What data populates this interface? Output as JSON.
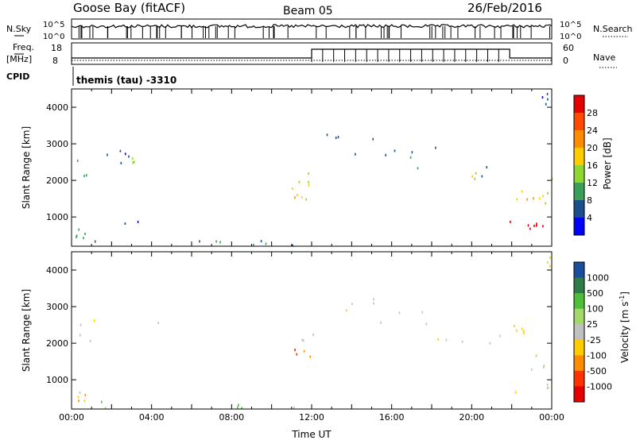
{
  "header": {
    "station": "Goose Bay (fitACF)",
    "beam": "Beam 05",
    "date": "26/Feb/2016"
  },
  "top_panels": {
    "nsky_label": "N.Sky",
    "nsearch_label": "N.Search",
    "nsky_ticks": [
      "10^5",
      "10^0"
    ],
    "nsearch_ticks": [
      "10^5",
      "10^0"
    ],
    "freq_label_1": "Freq.",
    "freq_label_2": "[MHz]",
    "freq_ticks": [
      "18",
      "8"
    ],
    "nave_label": "Nave",
    "nave_ticks": [
      "60",
      "0"
    ],
    "cpid_label": "CPID",
    "cpid_value": "themis (tau) -3310"
  },
  "chart_data": [
    {
      "type": "heatmap",
      "name": "power",
      "ylabel": "Slant Range [km]",
      "xlabel": "",
      "xlim": [
        0,
        24
      ],
      "ylim": [
        200,
        4500
      ],
      "y_ticks": [
        1000,
        2000,
        3000,
        4000
      ],
      "colorbar": {
        "label": "Power [dB]",
        "ticks": [
          "28",
          "24",
          "20",
          "16",
          "12",
          "8",
          "4"
        ],
        "colors": [
          "#e60000",
          "#ff4a00",
          "#ff8c00",
          "#ffcc00",
          "#8fd631",
          "#3c9f58",
          "#1a4f8c",
          "#0000ff"
        ]
      },
      "regions": [
        {
          "t0": 0.0,
          "t1": 0.9,
          "r0": 2000,
          "r1": 2900,
          "level": 2
        },
        {
          "t0": 0.9,
          "t1": 5.0,
          "r0": 2100,
          "r1": 2900,
          "level": 1
        },
        {
          "t0": 2.8,
          "t1": 3.2,
          "r0": 2500,
          "r1": 2650,
          "level": 3
        },
        {
          "t0": 0.0,
          "t1": 0.8,
          "r0": 450,
          "r1": 700,
          "level": 2
        },
        {
          "t0": 1.0,
          "t1": 11.5,
          "r0": 200,
          "r1": 450,
          "level": 1
        },
        {
          "t0": 6.5,
          "t1": 10.2,
          "r0": 250,
          "r1": 450,
          "level": 2
        },
        {
          "t0": 2.0,
          "t1": 3.5,
          "r0": 850,
          "r1": 1000,
          "level": 1
        },
        {
          "t0": 10.9,
          "t1": 12.3,
          "r0": 1300,
          "r1": 2300,
          "level": 3
        },
        {
          "t0": 11.0,
          "t1": 12.0,
          "r0": 1500,
          "r1": 2000,
          "level": 4
        },
        {
          "t0": 12.4,
          "t1": 16.0,
          "r0": 3100,
          "r1": 3300,
          "level": 1
        },
        {
          "t0": 13.5,
          "t1": 18.5,
          "r0": 2550,
          "r1": 2950,
          "level": 1
        },
        {
          "t0": 16.5,
          "t1": 21.0,
          "r0": 2050,
          "r1": 2400,
          "level": 2
        },
        {
          "t0": 17.5,
          "t1": 21.5,
          "r0": 2000,
          "r1": 2250,
          "level": 3
        },
        {
          "t0": 21.8,
          "t1": 23.9,
          "r0": 1300,
          "r1": 1800,
          "level": 4
        },
        {
          "t0": 22.0,
          "t1": 23.5,
          "r0": 1500,
          "r1": 1700,
          "level": 5
        },
        {
          "t0": 21.8,
          "t1": 24.0,
          "r0": 650,
          "r1": 900,
          "level": 7
        },
        {
          "t0": 22.5,
          "t1": 24.0,
          "r0": 700,
          "r1": 850,
          "level": 8
        },
        {
          "t0": 23.3,
          "t1": 24.0,
          "r0": 1600,
          "r1": 2200,
          "level": 3
        },
        {
          "t0": 23.5,
          "t1": 23.9,
          "r0": 4100,
          "r1": 4400,
          "level": 1
        }
      ]
    },
    {
      "type": "heatmap",
      "name": "velocity",
      "ylabel": "Slant Range [km]",
      "xlabel": "Time UT",
      "xlim": [
        0,
        24
      ],
      "ylim": [
        200,
        4500
      ],
      "x_ticks": [
        "00:00",
        "04:00",
        "08:00",
        "12:00",
        "16:00",
        "20:00",
        "00:00"
      ],
      "y_ticks": [
        1000,
        2000,
        3000,
        4000
      ],
      "colorbar": {
        "label": "Velocity [m s",
        "label_sup": "-1",
        "label_end": "]",
        "ticks": [
          "1000",
          "500",
          "100",
          "25",
          "-25",
          "-100",
          "-500",
          "-1000"
        ],
        "colors": [
          "#1a4f9c",
          "#2f7c48",
          "#4fbf3a",
          "#a3d96b",
          "#c0c0c0",
          "#ffcc00",
          "#ff8c00",
          "#ff3300",
          "#e60000"
        ]
      },
      "regions": [
        {
          "t0": 0.0,
          "t1": 5.0,
          "r0": 2000,
          "r1": 2900,
          "level": 4
        },
        {
          "t0": 0.0,
          "t1": 0.8,
          "r0": 450,
          "r1": 700,
          "level": 3
        },
        {
          "t0": 1.0,
          "t1": 11.5,
          "r0": 200,
          "r1": 450,
          "level": 5
        },
        {
          "t0": 6.5,
          "t1": 10.2,
          "r0": 250,
          "r1": 450,
          "level": 6
        },
        {
          "t0": 10.9,
          "t1": 12.3,
          "r0": 1300,
          "r1": 2300,
          "level": 4
        },
        {
          "t0": 11.0,
          "t1": 12.0,
          "r0": 1600,
          "r1": 1900,
          "level": 2
        },
        {
          "t0": 12.4,
          "t1": 16.0,
          "r0": 3100,
          "r1": 3300,
          "level": 4
        },
        {
          "t0": 13.5,
          "t1": 18.5,
          "r0": 2550,
          "r1": 2950,
          "level": 4
        },
        {
          "t0": 16.5,
          "t1": 21.5,
          "r0": 2000,
          "r1": 2400,
          "level": 4
        },
        {
          "t0": 21.8,
          "t1": 23.9,
          "r0": 1300,
          "r1": 1800,
          "level": 4
        },
        {
          "t0": 21.8,
          "t1": 24.0,
          "r0": 650,
          "r1": 900,
          "level": 4
        },
        {
          "t0": 22.0,
          "t1": 22.8,
          "r0": 2300,
          "r1": 2600,
          "level": 3
        },
        {
          "t0": 23.5,
          "t1": 23.9,
          "r0": 4100,
          "r1": 4400,
          "level": 3
        }
      ]
    }
  ]
}
